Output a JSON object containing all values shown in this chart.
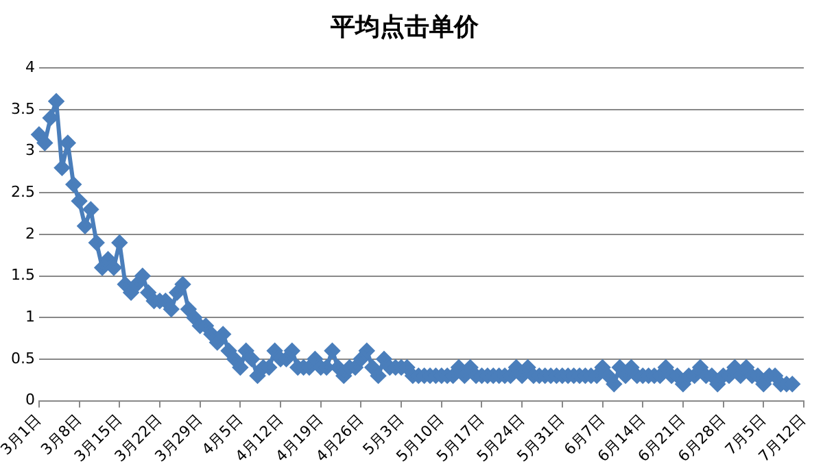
{
  "chart_data": {
    "type": "line",
    "title": "平均点击单价",
    "categories": [
      "3月1日",
      null,
      null,
      null,
      null,
      null,
      null,
      "3月8日",
      null,
      null,
      null,
      null,
      null,
      null,
      "3月15日",
      null,
      null,
      null,
      null,
      null,
      null,
      "3月22日",
      null,
      null,
      null,
      null,
      null,
      null,
      "3月29日",
      null,
      null,
      null,
      null,
      null,
      null,
      "4月5日",
      null,
      null,
      null,
      null,
      null,
      null,
      "4月12日",
      null,
      null,
      null,
      null,
      null,
      null,
      "4月19日",
      null,
      null,
      null,
      null,
      null,
      null,
      "4月26日",
      null,
      null,
      null,
      null,
      null,
      null,
      "5月3日",
      null,
      null,
      null,
      null,
      null,
      null,
      "5月10日",
      null,
      null,
      null,
      null,
      null,
      null,
      "5月17日",
      null,
      null,
      null,
      null,
      null,
      null,
      "5月24日",
      null,
      null,
      null,
      null,
      null,
      null,
      "5月31日",
      null,
      null,
      null,
      null,
      null,
      null,
      "6月7日",
      null,
      null,
      null,
      null,
      null,
      null,
      "6月14日",
      null,
      null,
      null,
      null,
      null,
      null,
      "6月21日",
      null,
      null,
      null,
      null,
      null,
      null,
      "6月28日",
      null,
      null,
      null,
      null,
      null,
      null,
      "7月5日",
      null,
      null,
      null,
      null,
      null,
      null,
      "7月12日"
    ],
    "series": [
      {
        "color": "#4a7ebb",
        "values": [
          3.2,
          3.1,
          3.4,
          3.6,
          2.8,
          3.1,
          2.6,
          2.4,
          2.1,
          2.3,
          1.9,
          1.6,
          1.7,
          1.6,
          1.9,
          1.4,
          1.3,
          1.4,
          1.5,
          1.3,
          1.2,
          1.2,
          1.2,
          1.1,
          1.3,
          1.4,
          1.1,
          1.0,
          0.9,
          0.9,
          0.8,
          0.7,
          0.8,
          0.6,
          0.5,
          0.4,
          0.6,
          0.5,
          0.3,
          0.4,
          0.4,
          0.6,
          0.5,
          0.5,
          0.6,
          0.4,
          0.4,
          0.4,
          0.5,
          0.4,
          0.4,
          0.6,
          0.4,
          0.3,
          0.4,
          0.4,
          0.5,
          0.6,
          0.4,
          0.3,
          0.5,
          0.4,
          0.4,
          0.4,
          0.4,
          0.3,
          0.3,
          0.3,
          0.3,
          0.3,
          0.3,
          0.3,
          0.3,
          0.4,
          0.3,
          0.4,
          0.3,
          0.3,
          0.3,
          0.3,
          0.3,
          0.3,
          0.3,
          0.4,
          0.3,
          0.4,
          0.3,
          0.3,
          0.3,
          0.3,
          0.3,
          0.3,
          0.3,
          0.3,
          0.3,
          0.3,
          0.3,
          0.3,
          0.4,
          0.3,
          0.2,
          0.4,
          0.3,
          0.4,
          0.3,
          0.3,
          0.3,
          0.3,
          0.3,
          0.4,
          0.3,
          0.3,
          0.2,
          0.3,
          0.3,
          0.4,
          0.3,
          0.3,
          0.2,
          0.3,
          0.3,
          0.4,
          0.3,
          0.4,
          0.3,
          0.3,
          0.2,
          0.3,
          0.3,
          0.2,
          0.2,
          0.2,
          null,
          null
        ]
      }
    ],
    "ylim": [
      0,
      4
    ],
    "yticks": [
      0,
      0.5,
      1,
      1.5,
      2,
      2.5,
      3,
      3.5,
      4
    ],
    "grid": "y",
    "legend": false,
    "marker": "diamond",
    "line_style": "solid"
  }
}
